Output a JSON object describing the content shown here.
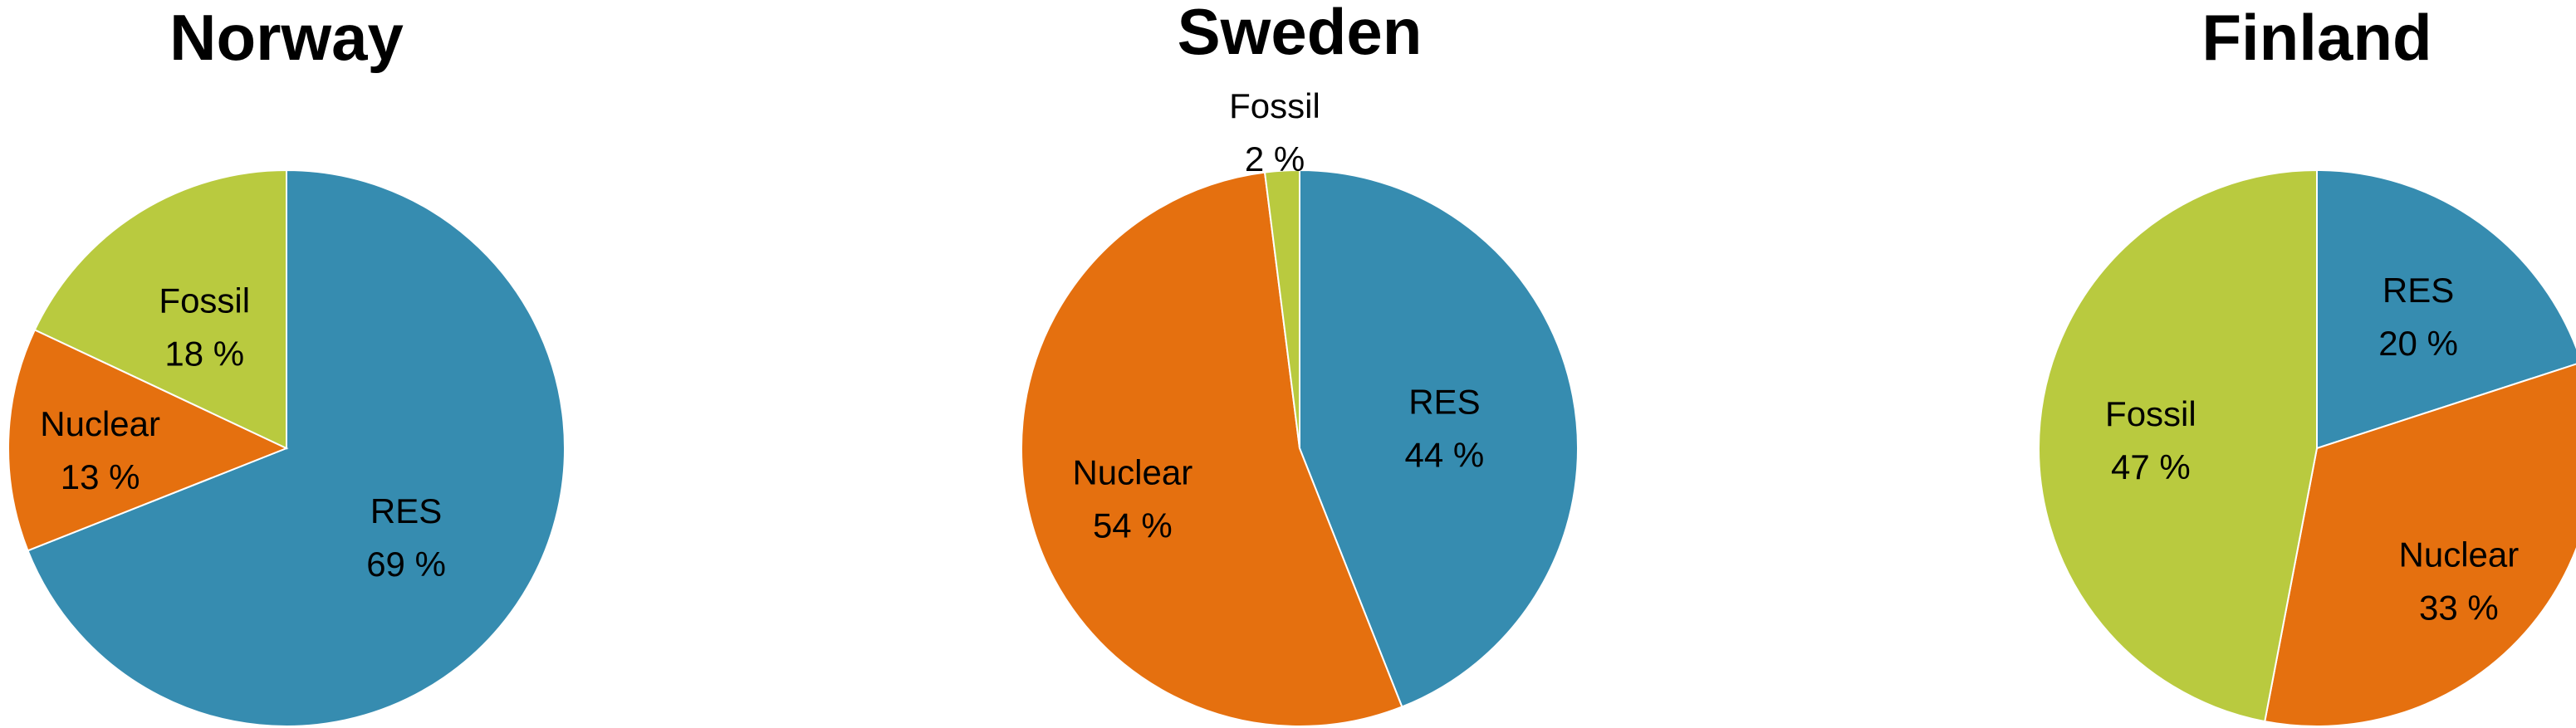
{
  "colors": {
    "RES": "#368CB0",
    "Nuclear": "#E5700F",
    "Fossil": "#B9CA3F"
  },
  "chart_data": [
    {
      "type": "pie",
      "title": "Norway",
      "categories": [
        "RES",
        "Nuclear",
        "Fossil"
      ],
      "values": [
        69,
        13,
        18
      ],
      "labels": [
        "69 %",
        "13 %",
        "18 %"
      ]
    },
    {
      "type": "pie",
      "title": "Sweden",
      "categories": [
        "RES",
        "Nuclear",
        "Fossil"
      ],
      "values": [
        44,
        54,
        2
      ],
      "labels": [
        "44 %",
        "54 %",
        "2 %"
      ]
    },
    {
      "type": "pie",
      "title": "Finland",
      "categories": [
        "RES",
        "Nuclear",
        "Fossil"
      ],
      "values": [
        20,
        33,
        47
      ],
      "labels": [
        "20 %",
        "33 %",
        "47 %"
      ]
    }
  ]
}
